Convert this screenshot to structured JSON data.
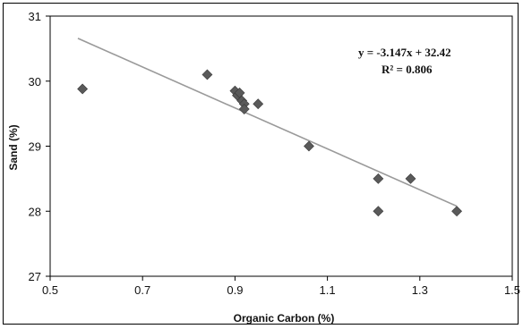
{
  "chart_data": {
    "type": "scatter",
    "xlabel": "Organic Carbon (%)",
    "ylabel": "Sand (%)",
    "xlim": [
      0.5,
      1.5
    ],
    "ylim": [
      27,
      31
    ],
    "xticks": [
      0.5,
      0.7,
      0.9,
      1.1,
      1.3,
      1.5
    ],
    "yticks": [
      27,
      28,
      29,
      30,
      31
    ],
    "xtick_labels": [
      "0.5",
      "0.7",
      "0.9",
      "1.1",
      "1.3",
      "1.5"
    ],
    "ytick_labels": [
      "27",
      "28",
      "29",
      "30",
      "31"
    ],
    "grid": false,
    "legend": "none",
    "marker": "diamond",
    "marker_color": "#5a5a5a",
    "trendline_color": "#9a9a9a",
    "points": [
      {
        "x": 0.57,
        "y": 29.88
      },
      {
        "x": 0.84,
        "y": 30.1
      },
      {
        "x": 0.9,
        "y": 29.85
      },
      {
        "x": 0.905,
        "y": 29.78
      },
      {
        "x": 0.91,
        "y": 29.82
      },
      {
        "x": 0.915,
        "y": 29.7
      },
      {
        "x": 0.92,
        "y": 29.65
      },
      {
        "x": 0.92,
        "y": 29.57
      },
      {
        "x": 0.95,
        "y": 29.65
      },
      {
        "x": 1.06,
        "y": 29.0
      },
      {
        "x": 1.21,
        "y": 28.5
      },
      {
        "x": 1.21,
        "y": 28.0
      },
      {
        "x": 1.28,
        "y": 28.5
      },
      {
        "x": 1.38,
        "y": 28.0
      }
    ],
    "trendline": {
      "slope": -3.147,
      "intercept": 32.42,
      "x_range": [
        0.56,
        1.38
      ],
      "equation": "y = -3.147x + 32.42",
      "r_squared": "R² = 0.806"
    }
  }
}
